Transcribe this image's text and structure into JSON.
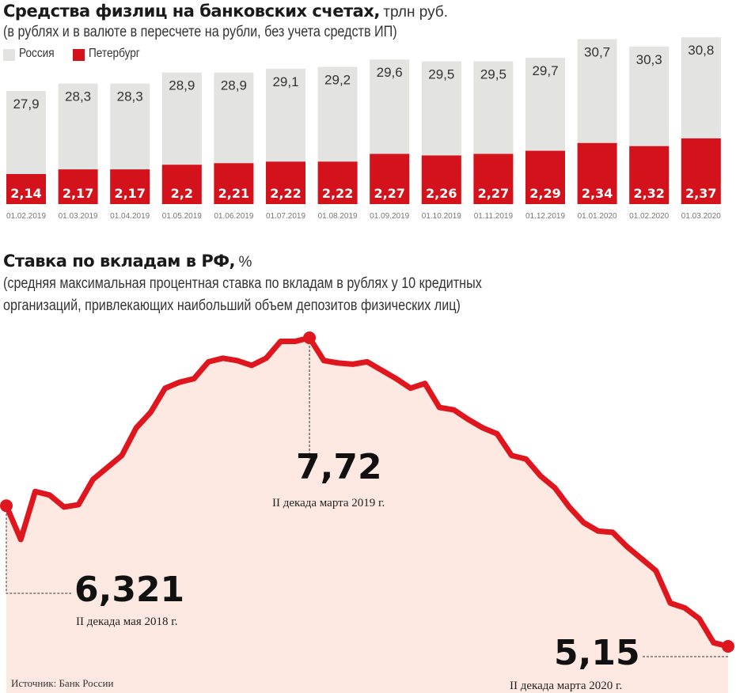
{
  "colors": {
    "russia": "#e3e3e1",
    "spb": "#d4121c",
    "line": "#e0161e",
    "fill": "#fde9e1",
    "text": "#1a1a1a"
  },
  "chart_data": [
    {
      "type": "bar",
      "title": "Средства физлиц на банковских счетах,",
      "unit": "трлн руб.",
      "subtitle": "(в рублях и в валюте в пересчете на рубли, без учета средств ИП)",
      "legend": [
        "Россия",
        "Петербург"
      ],
      "legend_placement": "top-left",
      "categories": [
        "01.02.2019",
        "01.03.2019",
        "01.04.2019",
        "01.05.2019",
        "01.06.2019",
        "01.07.2019",
        "01.08.2019",
        "01.09.2019",
        "01.10.2019",
        "01.11.2019",
        "01.12.2019",
        "01.01.2020",
        "01.02.2020",
        "01.03.2020"
      ],
      "series": [
        {
          "name": "Россия",
          "values": [
            27.9,
            28.3,
            28.3,
            28.9,
            28.9,
            29.1,
            29.2,
            29.6,
            29.5,
            29.5,
            29.7,
            30.7,
            30.3,
            30.8
          ],
          "labels": [
            "27,9",
            "28,3",
            "28,3",
            "28,9",
            "28,9",
            "29,1",
            "29,2",
            "29,6",
            "29,5",
            "29,5",
            "29,7",
            "30,7",
            "30,3",
            "30,8"
          ]
        },
        {
          "name": "Петербург",
          "values": [
            2.14,
            2.17,
            2.17,
            2.2,
            2.21,
            2.22,
            2.22,
            2.27,
            2.26,
            2.27,
            2.29,
            2.34,
            2.32,
            2.37
          ],
          "labels": [
            "2,14",
            "2,17",
            "2,17",
            "2,2",
            "2,21",
            "2,22",
            "2,22",
            "2,27",
            "2,26",
            "2,27",
            "2,29",
            "2,34",
            "2,32",
            "2,37"
          ]
        }
      ]
    },
    {
      "type": "area",
      "title": "Ставка по вкладам в РФ,",
      "unit": "%",
      "subtitle_lines": [
        "(средняя максимальная процентная ставка по вкладам в рублях у 10 кредитных",
        "организаций, привлекающих наибольший объем депозитов физических лиц)"
      ],
      "values": [
        6.321,
        6.04,
        6.44,
        6.41,
        6.31,
        6.33,
        6.54,
        6.64,
        6.74,
        6.97,
        7.1,
        7.3,
        7.35,
        7.38,
        7.52,
        7.55,
        7.53,
        7.49,
        7.55,
        7.69,
        7.69,
        7.72,
        7.53,
        7.51,
        7.5,
        7.52,
        7.45,
        7.38,
        7.3,
        7.34,
        7.14,
        7.12,
        7.04,
        6.97,
        6.92,
        6.74,
        6.71,
        6.57,
        6.47,
        6.31,
        6.18,
        6.11,
        6.1,
        5.98,
        5.88,
        5.78,
        5.51,
        5.47,
        5.38,
        5.18,
        5.15
      ],
      "ylim": [
        5.0,
        7.8
      ],
      "annotations": [
        {
          "value": "6,321",
          "label": "II декада мая 2018 г.",
          "index": 0
        },
        {
          "value": "7,72",
          "label": "II декада марта 2019 г.",
          "index": 21
        },
        {
          "value": "5,15",
          "label": "II декада марта 2020 г.",
          "index": 50
        }
      ],
      "source": "Источник: Банк России"
    }
  ]
}
